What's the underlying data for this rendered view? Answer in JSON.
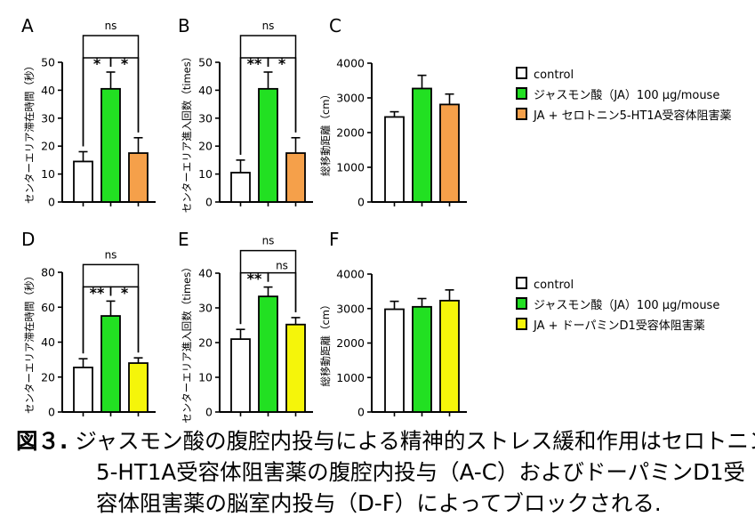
{
  "legend_top": [
    {
      "label": "control",
      "color": "#ffffff"
    },
    {
      "label": "ジャスモン酸（JA）100 μg/mouse",
      "color": "#22e022"
    },
    {
      "label": "JA + セロトニン5-HT1A受容体阻害薬",
      "color": "#f5a04a"
    }
  ],
  "legend_bottom": [
    {
      "label": "control",
      "color": "#ffffff"
    },
    {
      "label": "ジャスモン酸（JA）100 μg/mouse",
      "color": "#22e022"
    },
    {
      "label": "JA + ドーパミンD1受容体阻害薬",
      "color": "#f5f50a"
    }
  ],
  "caption": {
    "label": "図３.",
    "line1": "ジャスモン酸の腹腔内投与による精神的ストレス緩和作用はセロトニン",
    "line2": "5-HT1A受容体阻害薬の腹腔内投与（A-C）およびドーパミンD1受",
    "line3": "容体阻害薬の脳室内投与（D-F）によってブロックされる."
  },
  "chart_data": [
    {
      "panel": "A",
      "type": "bar",
      "ylabel": "センターエリア滞在時間（秒）",
      "ylim": [
        0,
        50
      ],
      "yticks": [
        0,
        10,
        20,
        30,
        40,
        50
      ],
      "values": [
        14.5,
        40.5,
        17.5
      ],
      "errors": [
        3.5,
        6,
        5.5
      ],
      "colors": [
        "#ffffff",
        "#22e022",
        "#f5a04a"
      ],
      "significance": [
        {
          "from": 0,
          "to": 1,
          "label": "*"
        },
        {
          "from": 1,
          "to": 2,
          "label": "*"
        },
        {
          "from": 0,
          "to": 2,
          "label": "ns"
        }
      ]
    },
    {
      "panel": "B",
      "type": "bar",
      "ylabel": "センターエリア進入回数（times）",
      "ylim": [
        0,
        50
      ],
      "yticks": [
        0,
        10,
        20,
        30,
        40,
        50
      ],
      "values": [
        10.5,
        40.5,
        17.5
      ],
      "errors": [
        4.5,
        6,
        5.5
      ],
      "colors": [
        "#ffffff",
        "#22e022",
        "#f5a04a"
      ],
      "significance": [
        {
          "from": 0,
          "to": 1,
          "label": "**"
        },
        {
          "from": 1,
          "to": 2,
          "label": "*"
        },
        {
          "from": 0,
          "to": 2,
          "label": "ns"
        }
      ]
    },
    {
      "panel": "C",
      "type": "bar",
      "ylabel": "総移動距離（cm）",
      "ylim": [
        0,
        4000
      ],
      "yticks": [
        0,
        1000,
        2000,
        3000,
        4000
      ],
      "values": [
        2450,
        3270,
        2810
      ],
      "errors": [
        150,
        380,
        300
      ],
      "colors": [
        "#ffffff",
        "#22e022",
        "#f5a04a"
      ],
      "significance": []
    },
    {
      "panel": "D",
      "type": "bar",
      "ylabel": "センターエリア滞在時間（秒）",
      "ylim": [
        0,
        80
      ],
      "yticks": [
        0,
        20,
        40,
        60,
        80
      ],
      "values": [
        25.5,
        55,
        28
      ],
      "errors": [
        5,
        8.5,
        3
      ],
      "colors": [
        "#ffffff",
        "#22e022",
        "#f5f50a"
      ],
      "significance": [
        {
          "from": 0,
          "to": 1,
          "label": "**"
        },
        {
          "from": 1,
          "to": 2,
          "label": "*"
        },
        {
          "from": 0,
          "to": 2,
          "label": "ns"
        }
      ]
    },
    {
      "panel": "E",
      "type": "bar",
      "ylabel": "センターエリア進入回数（times）",
      "ylim": [
        0,
        40
      ],
      "yticks": [
        0,
        10,
        20,
        30,
        40
      ],
      "values": [
        21,
        33.3,
        25.2
      ],
      "errors": [
        2.8,
        2.7,
        2
      ],
      "colors": [
        "#ffffff",
        "#22e022",
        "#f5f50a"
      ],
      "significance": [
        {
          "from": 0,
          "to": 1,
          "label": "**"
        },
        {
          "from": 1,
          "to": 2,
          "label": "ns"
        },
        {
          "from": 0,
          "to": 2,
          "label": "ns"
        }
      ]
    },
    {
      "panel": "F",
      "type": "bar",
      "ylabel": "総移動距離（cm）",
      "ylim": [
        0,
        4000
      ],
      "yticks": [
        0,
        1000,
        2000,
        3000,
        4000
      ],
      "values": [
        2980,
        3050,
        3230
      ],
      "errors": [
        230,
        240,
        310
      ],
      "colors": [
        "#ffffff",
        "#22e022",
        "#f5f50a"
      ],
      "significance": []
    }
  ]
}
